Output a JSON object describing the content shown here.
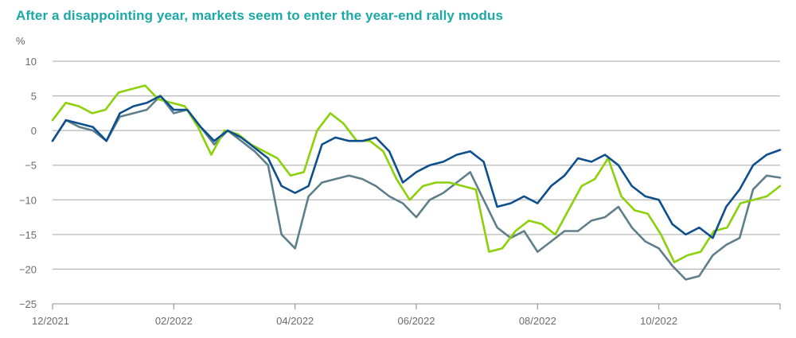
{
  "chart_data": {
    "type": "line",
    "title": "After a disappointing year, markets seem to enter the year-end rally modus",
    "ylabel": "%",
    "xlabel": "",
    "ylim": [
      -25,
      10
    ],
    "yticks": [
      10,
      5,
      0,
      -5,
      -10,
      -15,
      -20,
      -25
    ],
    "xtick_labels": [
      "12/2021",
      "02/2022",
      "04/2022",
      "06/2022",
      "08/2022",
      "10/2022",
      ""
    ],
    "x_range_weeks": [
      0,
      52
    ],
    "grid": true,
    "legend": "none",
    "series": [
      {
        "name": "dark-blue-series",
        "color": "#0d4f8e",
        "values": [
          -1.5,
          1.5,
          1.0,
          0.5,
          -1.5,
          2.5,
          3.5,
          4.0,
          5.0,
          3.0,
          3.0,
          0.5,
          -1.5,
          0.0,
          -1.0,
          -2.5,
          -4.0,
          -8.0,
          -9.0,
          -8.0,
          -2.0,
          -1.0,
          -1.5,
          -1.5,
          -1.0,
          -3.0,
          -7.5,
          -6.0,
          -5.0,
          -4.5,
          -3.5,
          -3.0,
          -4.5,
          -11.0,
          -10.5,
          -9.5,
          -10.5,
          -8.0,
          -6.5,
          -4.0,
          -4.5,
          -3.5,
          -5.0,
          -8.0,
          -9.5,
          -10.0,
          -13.5,
          -15.0,
          -14.0,
          -15.5,
          -11.0,
          -8.5,
          -5.0,
          -3.5,
          -2.8
        ],
        "dates_note": "weekly approx"
      },
      {
        "name": "light-green-series",
        "color": "#8bd10a",
        "values": [
          1.5,
          4.0,
          3.5,
          2.5,
          3.0,
          5.5,
          6.0,
          6.5,
          4.5,
          4.0,
          3.5,
          0.5,
          -3.5,
          0.0,
          -0.5,
          -2.0,
          -3.0,
          -4.0,
          -6.5,
          -6.0,
          0.0,
          2.5,
          1.0,
          -1.5,
          -1.5,
          -3.0,
          -7.0,
          -10.0,
          -8.0,
          -7.5,
          -7.5,
          -8.0,
          -8.5,
          -17.5,
          -17.0,
          -14.5,
          -13.0,
          -13.5,
          -15.0,
          -11.5,
          -8.0,
          -7.0,
          -4.0,
          -9.5,
          -11.5,
          -12.0,
          -15.0,
          -19.0,
          -18.0,
          -17.5,
          -14.5,
          -14.0,
          -10.5,
          -10.0,
          -9.5,
          -8.0
        ],
        "dates_note": "weekly approx"
      },
      {
        "name": "slate-gray-series",
        "color": "#5e7f8a",
        "values": [
          -1.5,
          1.5,
          0.5,
          0.0,
          -1.5,
          2.0,
          2.5,
          3.0,
          5.0,
          2.5,
          3.0,
          0.5,
          -2.0,
          0.0,
          -1.5,
          -3.0,
          -5.0,
          -15.0,
          -17.0,
          -9.5,
          -7.5,
          -7.0,
          -6.5,
          -7.0,
          -8.0,
          -9.5,
          -10.5,
          -12.5,
          -10.0,
          -9.0,
          -7.5,
          -6.0,
          -10.0,
          -14.0,
          -15.5,
          -14.5,
          -17.5,
          -16.0,
          -14.5,
          -14.5,
          -13.0,
          -12.5,
          -11.0,
          -14.0,
          -16.0,
          -17.0,
          -19.5,
          -21.5,
          -21.0,
          -18.0,
          -16.5,
          -15.5,
          -8.5,
          -6.5,
          -6.8
        ],
        "dates_note": "weekly approx"
      }
    ]
  }
}
